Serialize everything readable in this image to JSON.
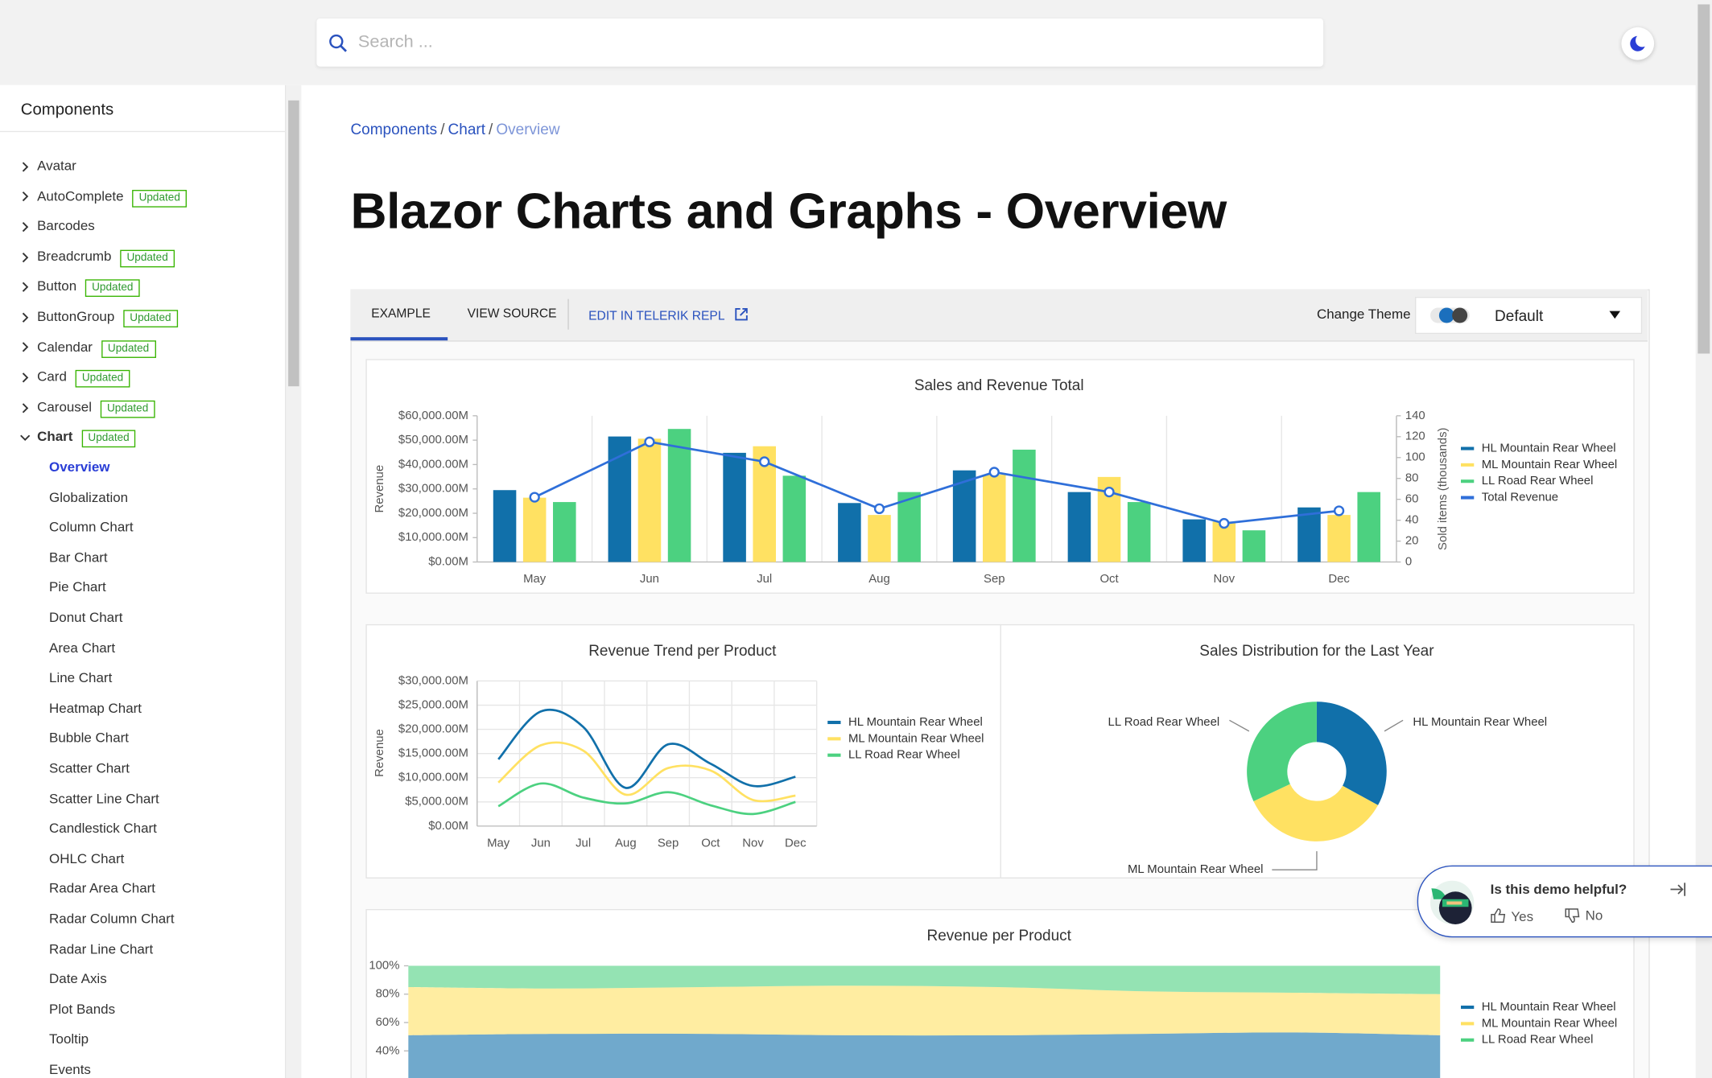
{
  "header": {
    "search_placeholder": "Search ..."
  },
  "sidebar": {
    "title": "Components",
    "items": [
      {
        "label": "Avatar"
      },
      {
        "label": "AutoComplete",
        "badge": "Updated"
      },
      {
        "label": "Barcodes"
      },
      {
        "label": "Breadcrumb",
        "badge": "Updated"
      },
      {
        "label": "Button",
        "badge": "Updated"
      },
      {
        "label": "ButtonGroup",
        "badge": "Updated"
      },
      {
        "label": "Calendar",
        "badge": "Updated"
      },
      {
        "label": "Card",
        "badge": "Updated"
      },
      {
        "label": "Carousel",
        "badge": "Updated"
      },
      {
        "label": "Chart",
        "badge": "Updated",
        "expanded": true
      }
    ],
    "subitems": [
      "Overview",
      "Globalization",
      "Column Chart",
      "Bar Chart",
      "Pie Chart",
      "Donut Chart",
      "Area Chart",
      "Line Chart",
      "Heatmap Chart",
      "Bubble Chart",
      "Scatter Chart",
      "Scatter Line Chart",
      "Candlestick Chart",
      "OHLC Chart",
      "Radar Area Chart",
      "Radar Column Chart",
      "Radar Line Chart",
      "Date Axis",
      "Plot Bands",
      "Tooltip",
      "Events"
    ],
    "active_subitem": 0
  },
  "breadcrumb": {
    "items": [
      "Components",
      "Chart",
      "Overview"
    ],
    "separator": "/"
  },
  "page_title": "Blazor Charts and Graphs - Overview",
  "toolbar": {
    "tabs": [
      "EXAMPLE",
      "VIEW SOURCE"
    ],
    "active_tab": 0,
    "repl": "EDIT IN TELERIK REPL",
    "theme_label": "Change Theme",
    "theme_value": "Default"
  },
  "chart_data": [
    {
      "type": "bar",
      "title": "Sales and Revenue Total",
      "y_label": "Revenue",
      "y2_label": "Sold items (thousands)",
      "categories": [
        "May",
        "Jun",
        "Jul",
        "Aug",
        "Sep",
        "Oct",
        "Nov",
        "Dec"
      ],
      "ylim": [
        0,
        60000
      ],
      "yticks": [
        {
          "value": 0,
          "label": "$0.00M"
        },
        {
          "value": 10000,
          "label": "$10,000.00M"
        },
        {
          "value": 20000,
          "label": "$20,000.00M"
        },
        {
          "value": 30000,
          "label": "$30,000.00M"
        },
        {
          "value": 40000,
          "label": "$40,000.00M"
        },
        {
          "value": 50000,
          "label": "$50,000.00M"
        },
        {
          "value": 60000,
          "label": "$60,000.00M"
        }
      ],
      "y2lim": [
        0,
        140
      ],
      "y2ticks": [
        0,
        20,
        40,
        60,
        80,
        100,
        120,
        140
      ],
      "grid": "categories",
      "series": [
        {
          "name": "HL Mountain Rear Wheel",
          "color": "#1170aa",
          "values": [
            29500,
            51500,
            44800,
            24200,
            37600,
            28700,
            17500,
            22400
          ]
        },
        {
          "name": "ML Mountain Rear Wheel",
          "color": "#ffe162",
          "values": [
            26400,
            50600,
            47500,
            19300,
            35800,
            34900,
            16600,
            19300
          ]
        },
        {
          "name": "LL Road Rear Wheel",
          "color": "#4cd180",
          "values": [
            24600,
            54600,
            35400,
            28700,
            46100,
            24600,
            13000,
            28700
          ]
        },
        {
          "name": "Total Revenue",
          "color": "#2f6fd9",
          "type": "line",
          "axis": "y2",
          "values": [
            62,
            115,
            96,
            51,
            86,
            67,
            37,
            49
          ]
        }
      ]
    },
    {
      "type": "line",
      "title": "Revenue Trend per Product",
      "y_label": "Revenue",
      "smooth": true,
      "grid": true,
      "categories": [
        "May",
        "Jun",
        "Jul",
        "Aug",
        "Sep",
        "Oct",
        "Nov",
        "Dec"
      ],
      "ylim": [
        0,
        30000
      ],
      "yticks": [
        {
          "value": 0,
          "label": "$0.00M"
        },
        {
          "value": 5000,
          "label": "$5,000.00M"
        },
        {
          "value": 10000,
          "label": "$10,000.00M"
        },
        {
          "value": 15000,
          "label": "$15,000.00M"
        },
        {
          "value": 20000,
          "label": "$20,000.00M"
        },
        {
          "value": 25000,
          "label": "$25,000.00M"
        },
        {
          "value": 30000,
          "label": "$30,000.00M"
        }
      ],
      "series": [
        {
          "name": "HL Mountain Rear Wheel",
          "color": "#1170aa",
          "values": [
            13800,
            23700,
            20500,
            7900,
            16900,
            12900,
            8300,
            10200
          ]
        },
        {
          "name": "ML Mountain Rear Wheel",
          "color": "#ffe162",
          "values": [
            9000,
            16700,
            15600,
            6500,
            12000,
            11500,
            5400,
            6300
          ]
        },
        {
          "name": "LL Road Rear Wheel",
          "color": "#4cd180",
          "values": [
            4100,
            8800,
            5900,
            4700,
            7000,
            4300,
            2500,
            5000
          ]
        }
      ]
    },
    {
      "type": "donut",
      "title": "Sales Distribution for the Last Year",
      "categories": [
        "HL Mountain Rear Wheel",
        "ML Mountain Rear Wheel",
        "LL Road Rear Wheel"
      ],
      "values": [
        33,
        35,
        32
      ],
      "colors": [
        "#1170aa",
        "#ffe162",
        "#4cd180"
      ]
    },
    {
      "type": "stacked-area",
      "title": "Revenue per Product",
      "ylim": [
        0,
        100
      ],
      "yticks": [
        {
          "value": 40,
          "label": "40%"
        },
        {
          "value": 60,
          "label": "60%"
        },
        {
          "value": 80,
          "label": "80%"
        },
        {
          "value": 100,
          "label": "100%"
        }
      ],
      "series": [
        {
          "name": "HL Mountain Rear Wheel",
          "color": "#1170aa",
          "values": [
            51,
            52,
            52,
            51,
            51,
            52,
            53,
            51
          ]
        },
        {
          "name": "ML Mountain Rear Wheel",
          "color": "#ffe162",
          "values": [
            34,
            32,
            33,
            35,
            34,
            30,
            28,
            29
          ]
        },
        {
          "name": "LL Road Rear Wheel",
          "color": "#4cd180",
          "values": [
            15,
            16,
            15,
            14,
            15,
            18,
            19,
            20
          ]
        }
      ]
    }
  ],
  "feedback": {
    "question": "Is this demo helpful?",
    "yes": "Yes",
    "no": "No"
  }
}
